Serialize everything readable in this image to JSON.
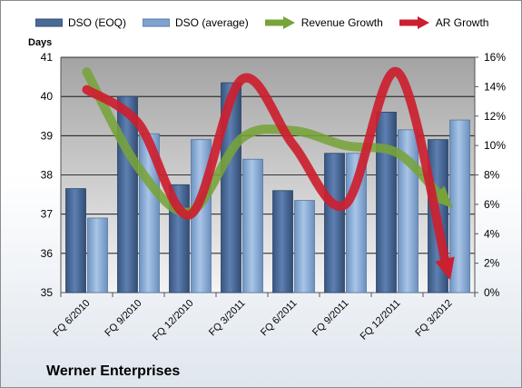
{
  "chart_data": {
    "type": "bar",
    "title": "",
    "ylabel": "Days",
    "y2label": "",
    "ylim": [
      35,
      41
    ],
    "y2lim": [
      0,
      16
    ],
    "yticks": [
      "35",
      "36",
      "37",
      "38",
      "39",
      "40",
      "41"
    ],
    "y2ticks": [
      "0%",
      "2%",
      "4%",
      "6%",
      "8%",
      "10%",
      "12%",
      "14%",
      "16%"
    ],
    "categories": [
      "FQ 6/2010",
      "FQ 9/2010",
      "FQ 12/2010",
      "FQ 3/2011",
      "FQ 6/2011",
      "FQ 9/2011",
      "FQ 12/2011",
      "FQ 3/2012"
    ],
    "series": [
      {
        "name": "DSO (EOQ)",
        "kind": "bar",
        "axis": "left",
        "color": "#4a6a98",
        "values": [
          37.65,
          40.0,
          37.75,
          40.35,
          37.6,
          38.55,
          39.6,
          38.9
        ]
      },
      {
        "name": "DSO (average)",
        "kind": "bar",
        "axis": "left",
        "color": "#7fa3cf",
        "values": [
          36.9,
          39.05,
          38.9,
          38.4,
          37.35,
          38.55,
          39.15,
          39.4
        ]
      },
      {
        "name": "Revenue Growth",
        "kind": "arrow-line",
        "axis": "right",
        "color": "#77a33a",
        "values": [
          15.0,
          8.5,
          5.5,
          10.5,
          11.0,
          10.0,
          9.5,
          6.0
        ]
      },
      {
        "name": "AR Growth",
        "kind": "arrow-line",
        "axis": "right",
        "color": "#cc1f2f",
        "values": [
          13.8,
          11.5,
          5.3,
          14.5,
          10.0,
          6.0,
          15.0,
          1.2
        ]
      }
    ],
    "grid": true,
    "legend": "top"
  },
  "company": "Werner Enterprises"
}
